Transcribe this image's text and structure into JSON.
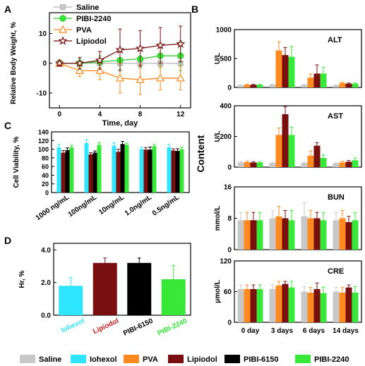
{
  "colors": {
    "saline": "#c8c8c8",
    "iohexol": "#2ee6ff",
    "pva": "#ff8a1f",
    "lipiodol": "#7a0f0f",
    "pibi6150": "#000000",
    "pibi2240": "#38e838",
    "saline_line": "#b4b4b4",
    "pibi2240_line": "#2ec82e"
  },
  "panels": {
    "a": "A",
    "b": "B",
    "c": "C",
    "d": "D",
    "b_ylabel": "Content"
  },
  "legend_bottom": [
    "Saline",
    "Iohexol",
    "PVA",
    "Lipiodol",
    "PIBI-6150",
    "PIBI-2240"
  ],
  "chart_data": [
    {
      "id": "A",
      "type": "line",
      "xlabel": "Time, day",
      "ylabel": "Relative Body Weight, %",
      "xlim": [
        -1,
        13
      ],
      "ylim": [
        -15,
        17
      ],
      "xticks": [
        "0",
        "4",
        "8",
        "12"
      ],
      "yticks": [
        "-10",
        "0",
        "10"
      ],
      "legend_position": "top-left",
      "x": [
        0,
        2,
        4,
        6,
        8,
        10,
        12
      ],
      "series": [
        {
          "name": "Saline",
          "values": [
            0,
            0,
            0,
            0,
            0,
            0,
            0
          ],
          "err": [
            0,
            0,
            0,
            0,
            0,
            0,
            0
          ]
        },
        {
          "name": "PIBI-2240",
          "values": [
            0,
            0,
            0.5,
            1,
            1.5,
            2.5,
            2.5
          ],
          "err": [
            1,
            1.5,
            2,
            3,
            3,
            4,
            5
          ]
        },
        {
          "name": "PVA",
          "values": [
            0,
            -2.5,
            -2.5,
            -5,
            -5.5,
            -5,
            -5
          ],
          "err": [
            1,
            2,
            3,
            5,
            5,
            4,
            4
          ]
        },
        {
          "name": "Lipiodol",
          "values": [
            0,
            0,
            1,
            4.5,
            5,
            6,
            6.5
          ],
          "err": [
            1,
            2,
            3,
            7,
            6,
            6,
            6
          ]
        }
      ]
    },
    {
      "id": "B-ALT",
      "type": "bar",
      "title": "ALT",
      "ylabel": "U/L",
      "ylim": [
        0,
        1000
      ],
      "yticks": [
        "0",
        "500",
        "1000"
      ],
      "categories": [
        "0 day",
        "3 days",
        "6 days",
        "14 days"
      ],
      "series": [
        {
          "name": "Saline",
          "values": [
            40,
            50,
            45,
            40
          ],
          "err": [
            5,
            8,
            8,
            5
          ]
        },
        {
          "name": "PVA",
          "values": [
            45,
            640,
            170,
            75
          ],
          "err": [
            8,
            150,
            60,
            15
          ]
        },
        {
          "name": "Lipiodol",
          "values": [
            45,
            560,
            240,
            65
          ],
          "err": [
            8,
            130,
            150,
            12
          ]
        },
        {
          "name": "PIBI-2240",
          "values": [
            45,
            530,
            240,
            65
          ],
          "err": [
            8,
            180,
            110,
            12
          ]
        }
      ]
    },
    {
      "id": "B-AST",
      "type": "bar",
      "title": "AST",
      "ylabel": "U/L",
      "ylim": [
        0,
        400
      ],
      "yticks": [
        "0",
        "200",
        "400"
      ],
      "categories": [
        "0 day",
        "3 days",
        "6 days",
        "14 days"
      ],
      "series": [
        {
          "name": "Saline",
          "values": [
            30,
            28,
            28,
            25
          ],
          "err": [
            5,
            5,
            5,
            4
          ]
        },
        {
          "name": "PVA",
          "values": [
            32,
            210,
            75,
            30
          ],
          "err": [
            8,
            45,
            30,
            8
          ]
        },
        {
          "name": "Lipiodol",
          "values": [
            30,
            345,
            140,
            35
          ],
          "err": [
            5,
            50,
            20,
            8
          ]
        },
        {
          "name": "PIBI-2240",
          "values": [
            30,
            210,
            60,
            45
          ],
          "err": [
            5,
            50,
            20,
            15
          ]
        }
      ]
    },
    {
      "id": "B-BUN",
      "type": "bar",
      "title": "BUN",
      "ylabel": "mmol/L",
      "ylim": [
        0,
        16
      ],
      "yticks": [
        "0",
        "8",
        "16"
      ],
      "categories": [
        "0 day",
        "3 days",
        "6 days",
        "14 days"
      ],
      "series": [
        {
          "name": "Saline",
          "values": [
            7.5,
            8,
            8.5,
            7.5
          ],
          "err": [
            2,
            2,
            3.5,
            2
          ]
        },
        {
          "name": "PVA",
          "values": [
            7.5,
            8.5,
            8,
            8
          ],
          "err": [
            2,
            2.5,
            2,
            2
          ]
        },
        {
          "name": "Lipiodol",
          "values": [
            7.5,
            8,
            8,
            7
          ],
          "err": [
            2,
            2,
            1.5,
            1.5
          ]
        },
        {
          "name": "PIBI-2240",
          "values": [
            7.5,
            7.5,
            7.5,
            7.5
          ],
          "err": [
            2,
            2.5,
            2,
            2
          ]
        }
      ]
    },
    {
      "id": "B-CRE",
      "type": "bar",
      "title": "CRE",
      "ylabel": "μmol/L",
      "ylim": [
        0,
        120
      ],
      "yticks": [
        "0",
        "60",
        "120"
      ],
      "categories": [
        "0 day",
        "3 days",
        "6 days",
        "14 days"
      ],
      "series": [
        {
          "name": "Saline",
          "values": [
            65,
            65,
            60,
            60
          ],
          "err": [
            8,
            8,
            10,
            8
          ]
        },
        {
          "name": "PVA",
          "values": [
            65,
            72,
            58,
            58
          ],
          "err": [
            8,
            8,
            10,
            10
          ]
        },
        {
          "name": "Lipiodol",
          "values": [
            65,
            75,
            65,
            68
          ],
          "err": [
            8,
            5,
            12,
            5
          ]
        },
        {
          "name": "PIBI-2240",
          "values": [
            65,
            68,
            57,
            58
          ],
          "err": [
            8,
            12,
            12,
            12
          ]
        }
      ]
    },
    {
      "id": "C",
      "type": "bar",
      "ylabel": "Cell Viability, %",
      "ylim": [
        0,
        140
      ],
      "yticks": [
        "0",
        "20",
        "40",
        "60",
        "80",
        "100",
        "120",
        "140"
      ],
      "categories": [
        "1000 ng/mL",
        "100ng/mL",
        "10ng/mL",
        "1.0ng/mL",
        "0.5ng/mL"
      ],
      "series": [
        {
          "name": "Iohexol",
          "values": [
            104,
            114,
            108,
            100,
            104
          ],
          "err": [
            7,
            8,
            7,
            5,
            7
          ]
        },
        {
          "name": "Lipiodol",
          "values": [
            92,
            88,
            94,
            99,
            97
          ],
          "err": [
            5,
            4,
            6,
            5,
            4
          ]
        },
        {
          "name": "PIBI-6150",
          "values": [
            98,
            92,
            112,
            99,
            96
          ],
          "err": [
            5,
            4,
            6,
            6,
            5
          ]
        },
        {
          "name": "PIBI-2240",
          "values": [
            104,
            110,
            110,
            107,
            100
          ],
          "err": [
            5,
            5,
            4,
            4,
            5
          ]
        }
      ]
    },
    {
      "id": "D",
      "type": "bar",
      "ylabel": "Hr, %",
      "ylim": [
        0,
        4.4
      ],
      "yticks": [
        "0.0",
        "2.0",
        "4.0"
      ],
      "categories": [
        "Iohexol",
        "Lipiodol",
        "PIBI-6150",
        "PIBI-2240"
      ],
      "values": [
        1.8,
        3.2,
        3.2,
        2.2
      ],
      "err": [
        0.5,
        0.3,
        0.3,
        0.85
      ]
    }
  ]
}
